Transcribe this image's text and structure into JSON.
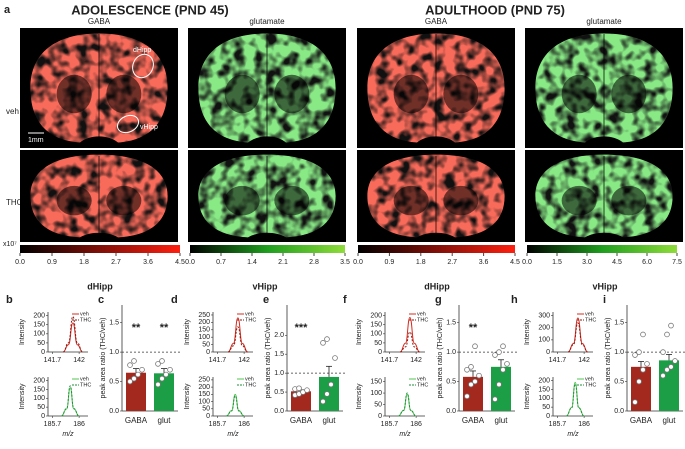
{
  "figure": {
    "panel_a": {
      "label": "a",
      "headings": [
        "ADOLESCENCE (PND 45)",
        "ADULTHOOD (PND 75)"
      ],
      "columns": [
        "GABA",
        "glutamate",
        "GABA",
        "glutamate"
      ],
      "rows": [
        "veh",
        "THC"
      ],
      "image_colors": [
        "#f0251a",
        "#3fcf3c",
        "#f0251a",
        "#3fcf3c"
      ],
      "annotations": [
        "dHipp",
        "vHipp",
        "1mm"
      ],
      "colorbar_unit": "x10⁷",
      "colorbars": [
        {
          "colors": [
            "#000000",
            "#ff1f0f"
          ],
          "lim": [
            0,
            4.5
          ],
          "ticks": [
            {
              "value": 0,
              "label": "0.0"
            },
            0.9,
            1.8,
            2.7,
            3.6,
            4.5
          ]
        },
        {
          "colors": [
            "#000000",
            "#1f9e1f",
            "#8fdc3a"
          ],
          "lim": [
            0,
            3.5
          ],
          "ticks": [
            {
              "value": 0,
              "label": "0.0"
            },
            0.7,
            1.4,
            2.1,
            2.8,
            3.5
          ]
        },
        {
          "colors": [
            "#000000",
            "#ff1f0f"
          ],
          "lim": [
            0,
            4.5
          ],
          "ticks": [
            {
              "value": 0,
              "label": "0.0"
            },
            0.9,
            1.8,
            2.7,
            3.6,
            4.5
          ]
        },
        {
          "colors": [
            "#000000",
            "#1f9e1f",
            "#8fdc3a"
          ],
          "lim": [
            0,
            7.5
          ],
          "ticks": [
            {
              "value": 0,
              "label": "0.0"
            },
            1.5,
            {
              "value": 3,
              "label": "3.0"
            },
            4.5,
            {
              "value": 6,
              "label": "6.0"
            },
            7.5
          ]
        }
      ]
    },
    "region_titles": [
      "dHipp",
      "vHipp",
      "dHipp",
      "vHipp"
    ]
  },
  "chart_data": [
    {
      "type": "line",
      "label": "b",
      "ylabel": "Intensity",
      "x": [
        141.82,
        141.88,
        141.93,
        141.98,
        142.04
      ],
      "xlim": [
        141.65,
        142.1
      ],
      "xticks": [
        141.7,
        142
      ],
      "ylim": [
        0,
        220
      ],
      "yticks": [
        0,
        50,
        100,
        150,
        200
      ],
      "series": [
        {
          "name": "veh",
          "color": "#d8281c",
          "dashed": false,
          "values": [
            0,
            40,
            160,
            40,
            0
          ]
        },
        {
          "name": "THC",
          "color": "#8a1a12",
          "dashed": true,
          "values": [
            0,
            50,
            195,
            50,
            0
          ]
        }
      ]
    },
    {
      "type": "line",
      "ylabel": "Intensity",
      "xlabel": "m/z",
      "x": [
        185.8,
        185.86,
        185.9,
        185.94,
        186.0
      ],
      "xlim": [
        185.65,
        186.1
      ],
      "xticks": [
        185.7,
        186
      ],
      "ylim": [
        0,
        220
      ],
      "yticks": [
        0,
        50,
        100,
        150,
        200
      ],
      "series": [
        {
          "name": "veh",
          "color": "#52c452",
          "dashed": false,
          "values": [
            0,
            40,
            160,
            40,
            0
          ]
        },
        {
          "name": "THC",
          "color": "#1f8f3a",
          "dashed": true,
          "values": [
            0,
            42,
            170,
            42,
            0
          ]
        }
      ]
    },
    {
      "type": "bar",
      "label": "c",
      "ylabel": "peak area ratio (THC/veh)",
      "categories": [
        "GABA",
        "glut"
      ],
      "colors": [
        "#a3291f",
        "#1c9e46"
      ],
      "values": [
        0.65,
        0.64
      ],
      "errors": [
        0.07,
        0.08
      ],
      "points": [
        [
          0.5,
          0.55,
          0.62,
          0.7,
          0.78,
          0.85
        ],
        [
          0.45,
          0.55,
          0.62,
          0.7,
          0.8,
          0.85
        ]
      ],
      "significance": [
        "**",
        "**"
      ],
      "reference_line": 1,
      "ylim": [
        0,
        1.8
      ],
      "yticks": [
        {
          "value": 0,
          "label": "0.0"
        },
        0.5,
        {
          "value": 1,
          "label": "1.0"
        },
        1.5
      ]
    },
    {
      "type": "line",
      "label": "d",
      "ylabel": "Intensity",
      "x": [
        141.82,
        141.88,
        141.93,
        141.98,
        142.04
      ],
      "xlim": [
        141.65,
        142.1
      ],
      "xticks": [
        141.7,
        142
      ],
      "ylim": [
        0,
        270
      ],
      "yticks": [
        0,
        50,
        100,
        150,
        200,
        250
      ],
      "series": [
        {
          "name": "veh",
          "color": "#d8281c",
          "dashed": false,
          "values": [
            0,
            58,
            230,
            58,
            0
          ]
        },
        {
          "name": "THC",
          "color": "#8a1a12",
          "dashed": true,
          "values": [
            0,
            42,
            170,
            42,
            0
          ]
        }
      ]
    },
    {
      "type": "line",
      "ylabel": "Intensity",
      "xlabel": "m/z",
      "x": [
        185.8,
        185.86,
        185.9,
        185.94,
        186.0
      ],
      "xlim": [
        185.65,
        186.1
      ],
      "xticks": [
        185.7,
        186
      ],
      "ylim": [
        0,
        270
      ],
      "yticks": [
        0,
        50,
        100,
        150,
        200,
        250
      ],
      "series": [
        {
          "name": "veh",
          "color": "#52c452",
          "dashed": false,
          "values": [
            0,
            38,
            150,
            38,
            0
          ]
        },
        {
          "name": "THC",
          "color": "#1f8f3a",
          "dashed": true,
          "values": [
            0,
            35,
            140,
            35,
            0
          ]
        }
      ]
    },
    {
      "type": "bar",
      "label": "e",
      "ylabel": "peak area ratio (THC/veh)",
      "categories": [
        "GABA",
        "glut"
      ],
      "colors": [
        "#a3291f",
        "#1c9e46"
      ],
      "values": [
        0.52,
        0.9
      ],
      "errors": [
        0.04,
        0.28
      ],
      "points": [
        [
          0.42,
          0.45,
          0.5,
          0.55,
          0.58,
          0.6
        ],
        [
          0.25,
          0.45,
          0.7,
          1.4,
          1.8,
          1.9
        ]
      ],
      "significance": [
        "***",
        null
      ],
      "reference_line": 1,
      "ylim": [
        0,
        2.8
      ],
      "yticks": [
        {
          "value": 0,
          "label": "0.0"
        },
        0.5,
        {
          "value": 1,
          "label": "1.0"
        },
        1.5,
        {
          "value": 2,
          "label": "2.0"
        }
      ]
    },
    {
      "type": "line",
      "label": "f",
      "ylabel": "Intensity",
      "x": [
        141.82,
        141.88,
        141.93,
        141.98,
        142.04
      ],
      "xlim": [
        141.65,
        142.1
      ],
      "xticks": [
        141.7,
        142
      ],
      "ylim": [
        0,
        220
      ],
      "yticks": [
        0,
        50,
        100,
        150,
        200
      ],
      "series": [
        {
          "name": "veh",
          "color": "#d8281c",
          "dashed": false,
          "values": [
            0,
            48,
            190,
            48,
            0
          ]
        },
        {
          "name": "THC",
          "color": "#8a1a12",
          "dashed": true,
          "values": [
            0,
            28,
            110,
            28,
            0
          ]
        }
      ]
    },
    {
      "type": "line",
      "ylabel": "Intensity",
      "xlabel": "m/z",
      "x": [
        185.8,
        185.86,
        185.9,
        185.94,
        186.0
      ],
      "xlim": [
        185.65,
        186.1
      ],
      "xticks": [
        185.7,
        186
      ],
      "ylim": [
        0,
        170
      ],
      "yticks": [
        0,
        50,
        100,
        150
      ],
      "series": [
        {
          "name": "veh",
          "color": "#52c452",
          "dashed": false,
          "values": [
            0,
            24,
            95,
            24,
            0
          ]
        },
        {
          "name": "THC",
          "color": "#1f8f3a",
          "dashed": true,
          "values": [
            0,
            25,
            100,
            25,
            0
          ]
        }
      ]
    },
    {
      "type": "bar",
      "label": "g",
      "ylabel": "peak area ratio (THC/veh)",
      "categories": [
        "GABA",
        "glut"
      ],
      "colors": [
        "#a3291f",
        "#1c9e46"
      ],
      "values": [
        0.58,
        0.75
      ],
      "errors": [
        0.1,
        0.12
      ],
      "points": [
        [
          0.25,
          0.45,
          0.5,
          0.6,
          0.7,
          0.75,
          1.1
        ],
        [
          0.2,
          0.45,
          0.7,
          0.8,
          0.95,
          1.0,
          1.1
        ]
      ],
      "significance": [
        "**",
        null
      ],
      "reference_line": 1,
      "ylim": [
        0,
        1.8
      ],
      "yticks": [
        {
          "value": 0,
          "label": "0.0"
        },
        0.5,
        {
          "value": 1,
          "label": "1.0"
        },
        1.5
      ]
    },
    {
      "type": "line",
      "label": "h",
      "ylabel": "Intensity",
      "x": [
        141.82,
        141.88,
        141.93,
        141.98,
        142.04
      ],
      "xlim": [
        141.65,
        142.1
      ],
      "xticks": [
        141.7,
        142
      ],
      "ylim": [
        0,
        330
      ],
      "yticks": [
        0,
        100,
        200,
        300
      ],
      "series": [
        {
          "name": "veh",
          "color": "#d8281c",
          "dashed": false,
          "values": [
            0,
            70,
            280,
            70,
            0
          ]
        },
        {
          "name": "THC",
          "color": "#8a1a12",
          "dashed": true,
          "values": [
            0,
            60,
            240,
            60,
            0
          ]
        }
      ]
    },
    {
      "type": "line",
      "ylabel": "Intensity",
      "xlabel": "m/z",
      "x": [
        185.8,
        185.86,
        185.9,
        185.94,
        186.0
      ],
      "xlim": [
        185.65,
        186.1
      ],
      "xticks": [
        185.7,
        186
      ],
      "ylim": [
        0,
        220
      ],
      "yticks": [
        0,
        50,
        100,
        150,
        200
      ],
      "series": [
        {
          "name": "veh",
          "color": "#52c452",
          "dashed": false,
          "values": [
            0,
            48,
            190,
            48,
            0
          ]
        },
        {
          "name": "THC",
          "color": "#1f8f3a",
          "dashed": true,
          "values": [
            0,
            45,
            180,
            45,
            0
          ]
        }
      ]
    },
    {
      "type": "bar",
      "label": "i",
      "ylabel": "peak area ratio (THC/veh)",
      "categories": [
        "GABA",
        "glut"
      ],
      "colors": [
        "#a3291f",
        "#1c9e46"
      ],
      "values": [
        0.75,
        0.86
      ],
      "errors": [
        0.09,
        0.1
      ],
      "points": [
        [
          0.15,
          0.5,
          0.7,
          0.8,
          0.95,
          1.0,
          1.3
        ],
        [
          0.6,
          0.7,
          0.75,
          0.85,
          1.0,
          1.3,
          1.45
        ]
      ],
      "significance": [
        null,
        null
      ],
      "reference_line": 1,
      "ylim": [
        0,
        1.8
      ],
      "yticks": [
        {
          "value": 0,
          "label": "0.0"
        },
        0.5,
        {
          "value": 1,
          "label": "1.0"
        },
        1.5
      ]
    }
  ]
}
